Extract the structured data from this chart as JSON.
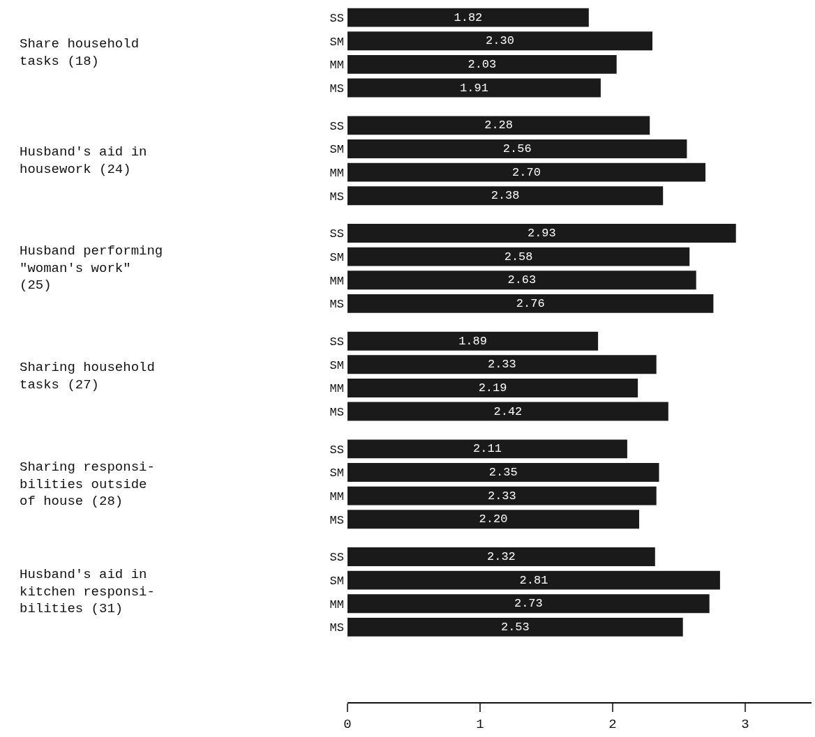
{
  "chart_data": {
    "type": "bar",
    "orientation": "horizontal",
    "color": "#1a1a1a",
    "categories": [
      "SS",
      "SM",
      "MM",
      "MS",
      "SS",
      "SM",
      "MM",
      "MS",
      "SS",
      "SM",
      "MM",
      "MS",
      "SS",
      "SM",
      "MM",
      "MS",
      "SS",
      "SM",
      "MM",
      "MS",
      "SS",
      "SM",
      "MM",
      "MS"
    ],
    "values": [
      1.82,
      2.3,
      2.03,
      1.91,
      2.28,
      2.56,
      2.7,
      2.38,
      2.93,
      2.58,
      2.63,
      2.76,
      1.89,
      2.33,
      2.19,
      2.42,
      2.11,
      2.35,
      2.33,
      2.2,
      2.32,
      2.81,
      2.73,
      2.53
    ],
    "value_labels": [
      "1.82",
      "2.30",
      "2.03",
      "1.91",
      "2.28",
      "2.56",
      "2.70",
      "2.38",
      "2.93",
      "2.58",
      "2.63",
      "2.76",
      "1.89",
      "2.33",
      "2.19",
      "2.42",
      "2.11",
      "2.35",
      "2.33",
      "2.20",
      "2.32",
      "2.81",
      "2.73",
      "2.53"
    ],
    "annotations": [
      "Share household\ntasks (18)",
      "Husband's aid in\nhousework (24)",
      "Husband performing\n\"woman's work\"\n(25)",
      "Sharing household\ntasks (27)",
      "Sharing responsi-\nbilities outside\nof house (28)",
      "Husband's aid in\nkitchen responsi-\nbilities (31)"
    ],
    "xlim": [
      0,
      3.5
    ],
    "xticks": [
      0,
      1,
      2,
      3
    ],
    "grid": false
  }
}
